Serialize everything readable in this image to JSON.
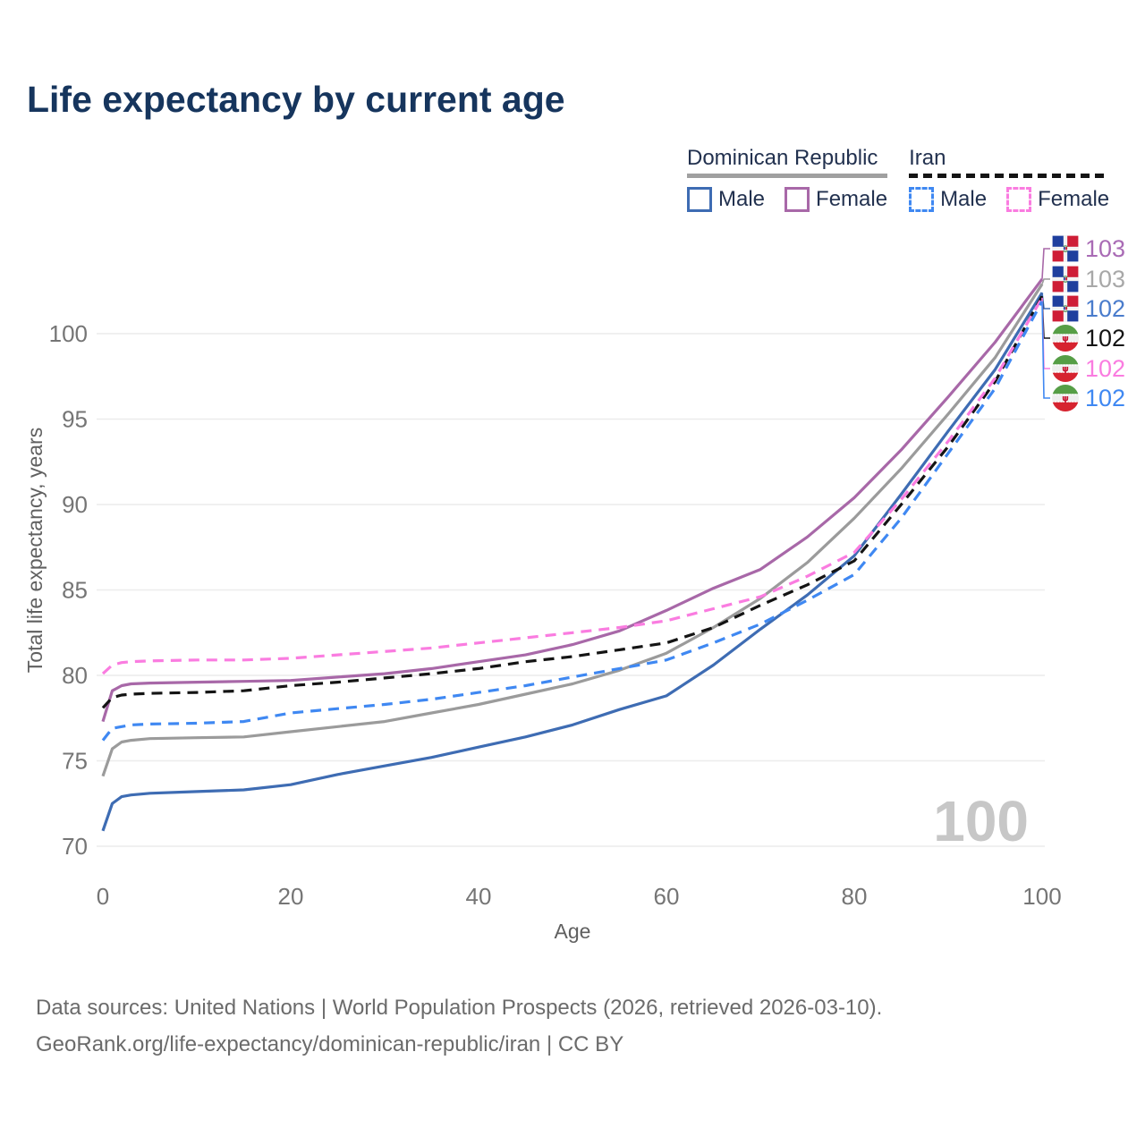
{
  "title": "Life expectancy by current age",
  "legend": {
    "groups": [
      {
        "label": "Dominican Republic",
        "rule_style": "solid",
        "items": [
          {
            "label": "Male",
            "color": "#3e6cb3",
            "box_style": "solid"
          },
          {
            "label": "Female",
            "color": "#a868a8",
            "box_style": "solid"
          }
        ]
      },
      {
        "label": "Iran",
        "rule_style": "dashed",
        "items": [
          {
            "label": "Male",
            "color": "#3f88f2",
            "box_style": "dashed"
          },
          {
            "label": "Female",
            "color": "#fa7ce0",
            "box_style": "dashed"
          }
        ]
      }
    ]
  },
  "watermark": "100",
  "footer": {
    "line1": "Data sources: United Nations | World Population Prospects (2026, retrieved 2026-03-10).",
    "line2": "GeoRank.org/life-expectancy/dominican-republic/iran | CC BY"
  },
  "colors": {
    "title": "#16355d",
    "tick": "#757575",
    "axis_label": "#606060",
    "gridline": "#ececec",
    "watermark": "#c7c7c7"
  },
  "chart_data": {
    "type": "line",
    "title": "Life expectancy by current age",
    "xlabel": "Age",
    "ylabel": "Total life expectancy, years",
    "xlim": [
      0,
      100
    ],
    "ylim": [
      70,
      103.5
    ],
    "xticks": [
      0,
      20,
      40,
      60,
      80,
      100
    ],
    "yticks": [
      70,
      75,
      80,
      85,
      90,
      95,
      100
    ],
    "grid": "horizontal-only",
    "legend_position": "top-right",
    "series": [
      {
        "name": "Dominican Republic Female",
        "country": "dominican-republic",
        "sex": "female",
        "color": "#a868a8",
        "dash": "none",
        "end_label": "103",
        "end_label_color": "#a96bb5",
        "points": [
          [
            0,
            77.3
          ],
          [
            1,
            79.1
          ],
          [
            2,
            79.4
          ],
          [
            3,
            79.5
          ],
          [
            5,
            79.55
          ],
          [
            10,
            79.6
          ],
          [
            15,
            79.65
          ],
          [
            20,
            79.7
          ],
          [
            25,
            79.9
          ],
          [
            30,
            80.1
          ],
          [
            35,
            80.4
          ],
          [
            40,
            80.8
          ],
          [
            45,
            81.2
          ],
          [
            50,
            81.8
          ],
          [
            55,
            82.6
          ],
          [
            60,
            83.8
          ],
          [
            65,
            85.1
          ],
          [
            70,
            86.2
          ],
          [
            75,
            88.1
          ],
          [
            80,
            90.4
          ],
          [
            85,
            93.2
          ],
          [
            90,
            96.3
          ],
          [
            95,
            99.5
          ],
          [
            100,
            103.2
          ]
        ]
      },
      {
        "name": "Dominican Republic Total",
        "country": "dominican-republic",
        "sex": "total",
        "color": "#9b9b9b",
        "dash": "none",
        "end_label": "103",
        "end_label_color": "#a8a8a8",
        "points": [
          [
            0,
            74.1
          ],
          [
            1,
            75.7
          ],
          [
            2,
            76.1
          ],
          [
            3,
            76.2
          ],
          [
            5,
            76.3
          ],
          [
            10,
            76.35
          ],
          [
            15,
            76.4
          ],
          [
            20,
            76.7
          ],
          [
            25,
            77.0
          ],
          [
            30,
            77.3
          ],
          [
            35,
            77.8
          ],
          [
            40,
            78.3
          ],
          [
            45,
            78.9
          ],
          [
            50,
            79.5
          ],
          [
            55,
            80.3
          ],
          [
            60,
            81.3
          ],
          [
            65,
            82.8
          ],
          [
            70,
            84.5
          ],
          [
            75,
            86.6
          ],
          [
            80,
            89.2
          ],
          [
            85,
            92.1
          ],
          [
            90,
            95.3
          ],
          [
            95,
            98.6
          ],
          [
            100,
            102.9
          ]
        ]
      },
      {
        "name": "Dominican Republic Male",
        "country": "dominican-republic",
        "sex": "male",
        "color": "#3e6cb3",
        "dash": "none",
        "end_label": "102",
        "end_label_color": "#4a7ccc",
        "points": [
          [
            0,
            70.9
          ],
          [
            1,
            72.5
          ],
          [
            2,
            72.9
          ],
          [
            3,
            73.0
          ],
          [
            5,
            73.1
          ],
          [
            10,
            73.2
          ],
          [
            15,
            73.3
          ],
          [
            20,
            73.6
          ],
          [
            25,
            74.2
          ],
          [
            30,
            74.7
          ],
          [
            35,
            75.2
          ],
          [
            40,
            75.8
          ],
          [
            45,
            76.4
          ],
          [
            50,
            77.1
          ],
          [
            55,
            78.0
          ],
          [
            60,
            78.8
          ],
          [
            65,
            80.6
          ],
          [
            70,
            82.7
          ],
          [
            75,
            84.7
          ],
          [
            80,
            87.0
          ],
          [
            85,
            90.6
          ],
          [
            90,
            94.3
          ],
          [
            95,
            97.9
          ],
          [
            100,
            102.4
          ]
        ]
      },
      {
        "name": "Iran Total",
        "country": "iran",
        "sex": "total",
        "color": "#141414",
        "dash": "12 8",
        "end_label": "102",
        "end_label_color": "#141414",
        "points": [
          [
            0,
            78.1
          ],
          [
            1,
            78.7
          ],
          [
            2,
            78.85
          ],
          [
            3,
            78.9
          ],
          [
            5,
            78.95
          ],
          [
            10,
            79.0
          ],
          [
            15,
            79.1
          ],
          [
            20,
            79.4
          ],
          [
            25,
            79.6
          ],
          [
            30,
            79.85
          ],
          [
            35,
            80.1
          ],
          [
            40,
            80.4
          ],
          [
            45,
            80.8
          ],
          [
            50,
            81.1
          ],
          [
            55,
            81.5
          ],
          [
            60,
            81.9
          ],
          [
            65,
            82.8
          ],
          [
            70,
            84.1
          ],
          [
            75,
            85.3
          ],
          [
            80,
            86.7
          ],
          [
            85,
            90.0
          ],
          [
            90,
            93.4
          ],
          [
            95,
            97.2
          ],
          [
            100,
            102.2
          ]
        ]
      },
      {
        "name": "Iran Female",
        "country": "iran",
        "sex": "female",
        "color": "#fa7ce0",
        "dash": "12 8",
        "end_label": "102",
        "end_label_color": "#fa7ce0",
        "points": [
          [
            0,
            80.1
          ],
          [
            1,
            80.6
          ],
          [
            2,
            80.75
          ],
          [
            3,
            80.8
          ],
          [
            5,
            80.85
          ],
          [
            10,
            80.9
          ],
          [
            15,
            80.9
          ],
          [
            20,
            81.0
          ],
          [
            25,
            81.2
          ],
          [
            30,
            81.4
          ],
          [
            35,
            81.6
          ],
          [
            40,
            81.9
          ],
          [
            45,
            82.2
          ],
          [
            50,
            82.5
          ],
          [
            55,
            82.8
          ],
          [
            60,
            83.2
          ],
          [
            65,
            83.9
          ],
          [
            70,
            84.6
          ],
          [
            75,
            85.8
          ],
          [
            80,
            87.2
          ],
          [
            85,
            90.3
          ],
          [
            90,
            93.7
          ],
          [
            95,
            97.4
          ],
          [
            100,
            102.1
          ]
        ]
      },
      {
        "name": "Iran Male",
        "country": "iran",
        "sex": "male",
        "color": "#3f88f2",
        "dash": "12 8",
        "end_label": "102",
        "end_label_color": "#3f88f2",
        "points": [
          [
            0,
            76.2
          ],
          [
            1,
            76.9
          ],
          [
            2,
            77.0
          ],
          [
            3,
            77.1
          ],
          [
            5,
            77.15
          ],
          [
            10,
            77.2
          ],
          [
            15,
            77.3
          ],
          [
            20,
            77.8
          ],
          [
            25,
            78.05
          ],
          [
            30,
            78.3
          ],
          [
            35,
            78.6
          ],
          [
            40,
            79.0
          ],
          [
            45,
            79.4
          ],
          [
            50,
            79.9
          ],
          [
            55,
            80.4
          ],
          [
            60,
            80.9
          ],
          [
            65,
            81.9
          ],
          [
            70,
            83.0
          ],
          [
            75,
            84.4
          ],
          [
            80,
            85.9
          ],
          [
            85,
            89.2
          ],
          [
            90,
            93.0
          ],
          [
            95,
            96.8
          ],
          [
            100,
            101.9
          ]
        ]
      }
    ]
  }
}
